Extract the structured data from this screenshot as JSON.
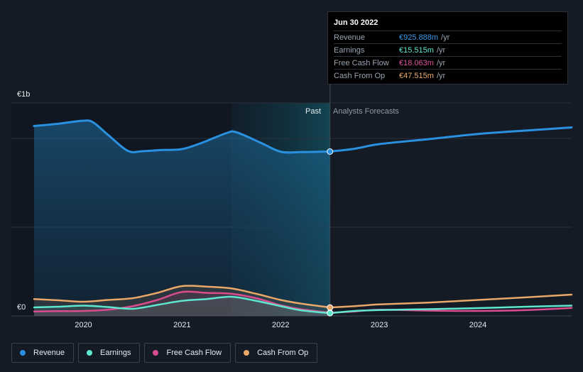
{
  "chart_data": {
    "type": "area",
    "y_unit_labels": {
      "top": "€1b",
      "bottom": "€0"
    },
    "ylim": [
      0,
      1200
    ],
    "xlim": [
      2019.5,
      2024.95
    ],
    "x_ticks": [
      "2020",
      "2021",
      "2022",
      "2023",
      "2024"
    ],
    "x_tick_values": [
      2020,
      2021,
      2022,
      2023,
      2024
    ],
    "past_label": "Past",
    "forecast_label": "Analysts Forecasts",
    "divider_x": 2022.5,
    "highlight_start_x": 2021.5,
    "series": [
      {
        "name": "Revenue",
        "color": "#2a90e0",
        "past": [
          [
            2019.5,
            1070
          ],
          [
            2019.75,
            1083
          ],
          [
            2020.0,
            1100
          ],
          [
            2020.1,
            1090
          ],
          [
            2020.25,
            1020
          ],
          [
            2020.45,
            930
          ],
          [
            2020.6,
            928
          ],
          [
            2020.8,
            935
          ],
          [
            2021.0,
            940
          ],
          [
            2021.2,
            975
          ],
          [
            2021.45,
            1030
          ],
          [
            2021.55,
            1035
          ],
          [
            2021.8,
            975
          ],
          [
            2022.0,
            925
          ],
          [
            2022.2,
            923
          ],
          [
            2022.5,
            926
          ]
        ],
        "future": [
          [
            2022.5,
            926
          ],
          [
            2022.75,
            942
          ],
          [
            2023.0,
            968
          ],
          [
            2023.5,
            996
          ],
          [
            2024.0,
            1025
          ],
          [
            2024.5,
            1045
          ],
          [
            2024.95,
            1062
          ]
        ]
      },
      {
        "name": "Earnings",
        "color": "#5ee7cf",
        "past": [
          [
            2019.5,
            48
          ],
          [
            2019.75,
            52
          ],
          [
            2020.0,
            58
          ],
          [
            2020.25,
            50
          ],
          [
            2020.5,
            40
          ],
          [
            2020.75,
            62
          ],
          [
            2021.0,
            85
          ],
          [
            2021.25,
            95
          ],
          [
            2021.5,
            108
          ],
          [
            2021.75,
            85
          ],
          [
            2022.0,
            55
          ],
          [
            2022.2,
            32
          ],
          [
            2022.5,
            15.5
          ]
        ],
        "future": [
          [
            2022.5,
            15.5
          ],
          [
            2022.75,
            28
          ],
          [
            2023.0,
            33
          ],
          [
            2023.5,
            38
          ],
          [
            2024.0,
            44
          ],
          [
            2024.5,
            52
          ],
          [
            2024.95,
            58
          ]
        ]
      },
      {
        "name": "Free Cash Flow",
        "color": "#d94c8f",
        "past": [
          [
            2019.5,
            25
          ],
          [
            2019.75,
            27
          ],
          [
            2020.0,
            28
          ],
          [
            2020.25,
            35
          ],
          [
            2020.5,
            55
          ],
          [
            2020.75,
            90
          ],
          [
            2021.0,
            135
          ],
          [
            2021.25,
            130
          ],
          [
            2021.5,
            125
          ],
          [
            2021.75,
            100
          ],
          [
            2022.0,
            60
          ],
          [
            2022.2,
            38
          ],
          [
            2022.5,
            18
          ]
        ],
        "future": [
          [
            2022.5,
            18
          ],
          [
            2022.75,
            25
          ],
          [
            2023.0,
            35
          ],
          [
            2023.5,
            30
          ],
          [
            2024.0,
            28
          ],
          [
            2024.5,
            33
          ],
          [
            2024.95,
            45
          ]
        ]
      },
      {
        "name": "Cash From Op",
        "color": "#e9a868",
        "past": [
          [
            2019.5,
            95
          ],
          [
            2019.75,
            88
          ],
          [
            2020.0,
            80
          ],
          [
            2020.25,
            90
          ],
          [
            2020.5,
            100
          ],
          [
            2020.75,
            130
          ],
          [
            2021.0,
            168
          ],
          [
            2021.25,
            165
          ],
          [
            2021.5,
            155
          ],
          [
            2021.75,
            125
          ],
          [
            2022.0,
            90
          ],
          [
            2022.2,
            70
          ],
          [
            2022.5,
            47.5
          ]
        ],
        "future": [
          [
            2022.5,
            47.5
          ],
          [
            2022.75,
            55
          ],
          [
            2023.0,
            65
          ],
          [
            2023.5,
            75
          ],
          [
            2024.0,
            90
          ],
          [
            2024.5,
            105
          ],
          [
            2024.95,
            120
          ]
        ]
      }
    ]
  },
  "tooltip": {
    "date": "Jun 30 2022",
    "rows": [
      {
        "label": "Revenue",
        "value": "€925.888m",
        "unit": "/yr",
        "color": "#3b9ae8"
      },
      {
        "label": "Earnings",
        "value": "€15.515m",
        "unit": "/yr",
        "color": "#5ee7cf"
      },
      {
        "label": "Free Cash Flow",
        "value": "€18.063m",
        "unit": "/yr",
        "color": "#e0559a"
      },
      {
        "label": "Cash From Op",
        "value": "€47.515m",
        "unit": "/yr",
        "color": "#ecae6e"
      }
    ]
  },
  "legend": [
    {
      "label": "Revenue",
      "color": "#2a90e0"
    },
    {
      "label": "Earnings",
      "color": "#5ee7cf"
    },
    {
      "label": "Free Cash Flow",
      "color": "#d94c8f"
    },
    {
      "label": "Cash From Op",
      "color": "#e9a868"
    }
  ]
}
